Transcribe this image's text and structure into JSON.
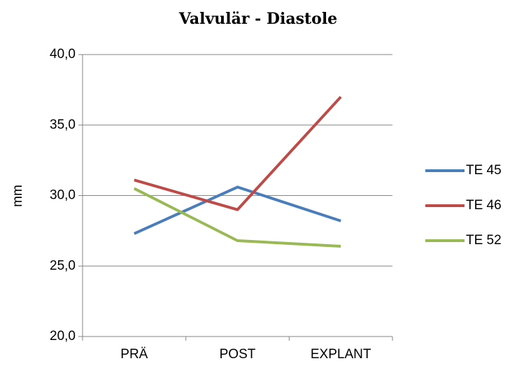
{
  "chart_data": {
    "type": "line",
    "title": "Valvulär - Diastole",
    "y_label": "mm",
    "categories": [
      "PRÄ",
      "POST",
      "EXPLANT"
    ],
    "series": [
      {
        "name": "TE 45",
        "color": "#4a7ebb",
        "values": [
          27.3,
          30.6,
          28.2
        ]
      },
      {
        "name": "TE 46",
        "color": "#be4b48",
        "values": [
          31.1,
          29.0,
          37.0
        ]
      },
      {
        "name": "TE 52",
        "color": "#98b954",
        "values": [
          30.5,
          26.8,
          26.4
        ]
      }
    ],
    "ylim": [
      20,
      40
    ],
    "yticks": [
      {
        "value": 20,
        "label": "20,0"
      },
      {
        "value": 25,
        "label": "25,0"
      },
      {
        "value": 30,
        "label": "30,0"
      },
      {
        "value": 35,
        "label": "35,0"
      },
      {
        "value": 40,
        "label": "40,0"
      }
    ],
    "grid": true,
    "legend": "right"
  }
}
